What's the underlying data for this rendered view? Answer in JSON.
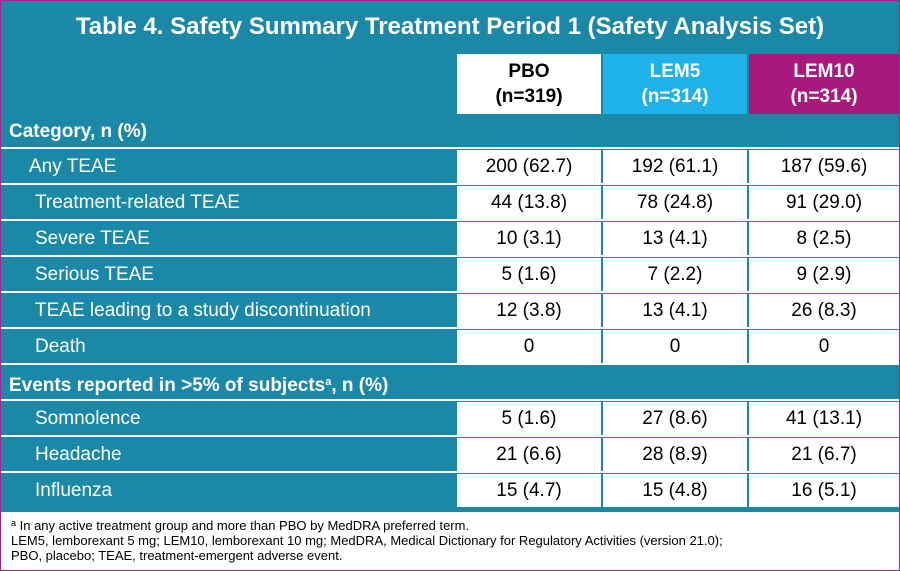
{
  "title": "Table 4. Safety Summary Treatment Period 1 (Safety Analysis Set)",
  "columns": [
    {
      "name": "PBO",
      "n": "(n=319)"
    },
    {
      "name": "LEM5",
      "n": "(n=314)"
    },
    {
      "name": "LEM10",
      "n": "(n=314)"
    }
  ],
  "sections": {
    "category": "Category, n (%)",
    "events_prefix": "Events reported in >5% of subjects",
    "events_sup": "a",
    "events_suffix": ", n (%)"
  },
  "rows": [
    {
      "label": "Any TEAE",
      "values": [
        "200 (62.7)",
        "192 (61.1)",
        "187 (59.6)"
      ]
    },
    {
      "label": "Treatment-related TEAE",
      "values": [
        "44 (13.8)",
        "78 (24.8)",
        "91 (29.0)"
      ]
    },
    {
      "label": "Severe TEAE",
      "values": [
        "10 (3.1)",
        "13 (4.1)",
        "8 (2.5)"
      ]
    },
    {
      "label": "Serious TEAE",
      "values": [
        "5 (1.6)",
        "7 (2.2)",
        "9 (2.9)"
      ]
    },
    {
      "label": "TEAE leading to a study discontinuation",
      "values": [
        "12 (3.8)",
        "13 (4.1)",
        "26 (8.3)"
      ]
    },
    {
      "label": "Death",
      "values": [
        "0",
        "0",
        "0"
      ]
    },
    {
      "label": "Somnolence",
      "values": [
        "5 (1.6)",
        "27 (8.6)",
        "41 (13.1)"
      ]
    },
    {
      "label": "Headache",
      "values": [
        "21 (6.6)",
        "28 (8.9)",
        "21 (6.7)"
      ]
    },
    {
      "label": "Influenza",
      "values": [
        "15 (4.7)",
        "15 (4.8)",
        "16 (5.1)"
      ]
    }
  ],
  "footnotes": {
    "sup": "a",
    "line1": " In any active treatment group and more than PBO by MedDRA preferred term.",
    "line2": "LEM5, lemborexant 5 mg; LEM10, lemborexant 10 mg; MedDRA, Medical Dictionary for Regulatory Activities (version 21.0);",
    "line3": "PBO, placebo; TEAE, treatment-emergent adverse event."
  },
  "colors": {
    "teal": "#1b88a8",
    "lem5": "#1fb2e8",
    "lem10": "#a8187e",
    "border": "#b01e8c"
  }
}
